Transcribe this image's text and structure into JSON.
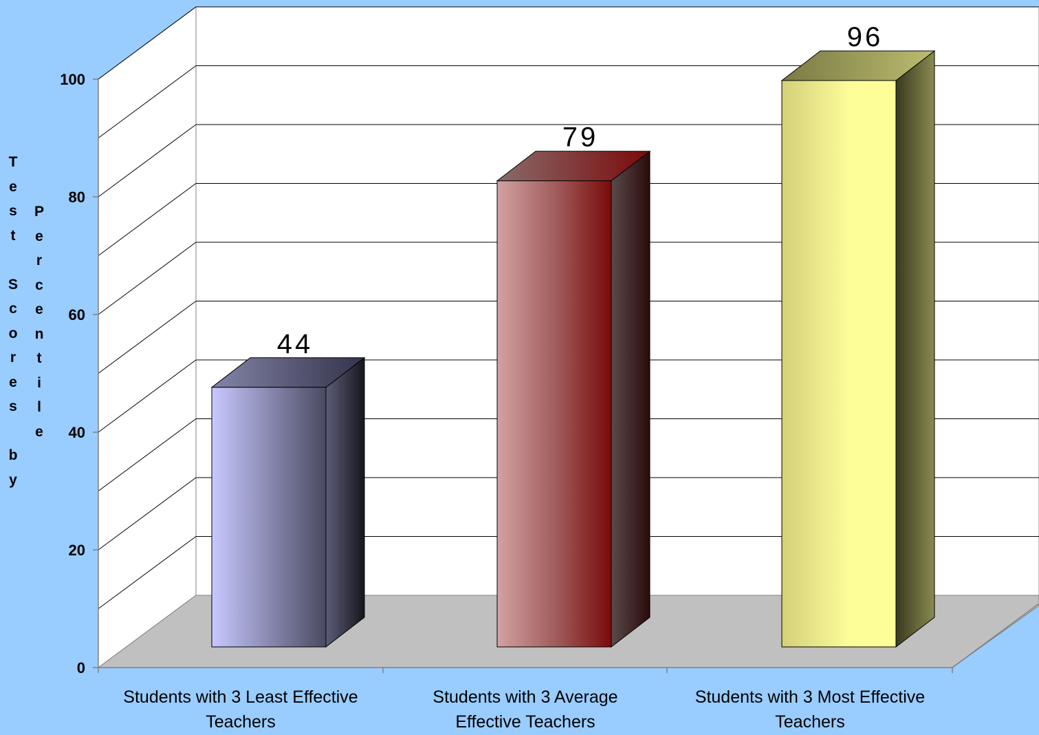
{
  "chart_data": {
    "type": "bar",
    "title": "",
    "ylabel": "Test Scores by Percentile",
    "ylabel_columns": [
      "Test Scores by",
      "Percentile"
    ],
    "ylim": [
      0,
      100
    ],
    "yticks": [
      "0",
      "20",
      "40",
      "60",
      "80",
      "100"
    ],
    "grid": true,
    "categories": [
      "Students with 3 Least Effective Teachers",
      "Students with 3 Average Effective Teachers",
      "Students with 3 Most Effective Teachers"
    ],
    "category_lines": [
      [
        "Students with 3 Least Effective",
        "Teachers"
      ],
      [
        "Students with 3 Average",
        "Effective Teachers"
      ],
      [
        "Students with 3 Most Effective",
        "Teachers"
      ]
    ],
    "values": [
      44,
      79,
      96
    ],
    "data_labels": [
      "44",
      "79",
      "96"
    ],
    "colors": [
      "#c8c8ff",
      "#cf9e9e",
      "#ffff99"
    ],
    "background": "#99ccff",
    "floor_color": "#c0c0c0"
  }
}
